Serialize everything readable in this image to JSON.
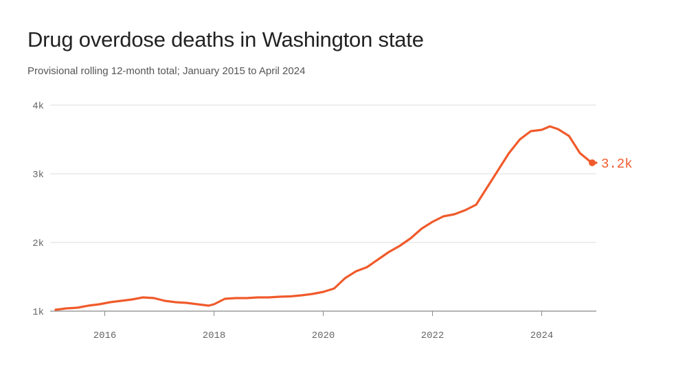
{
  "title": "Drug overdose deaths in Washington state",
  "subtitle": "Provisional rolling 12-month total; January 2015 to April 2024",
  "colors": {
    "line": "#f05a2b",
    "grid": "#dddddd",
    "axis": "#888888",
    "text": "#666666"
  },
  "chart_data": {
    "type": "line",
    "title": "Drug overdose deaths in Washington state",
    "subtitle": "Provisional rolling 12-month total; January 2015 to April 2024",
    "xlabel": "",
    "ylabel": "",
    "xlim": [
      2015.0,
      2025.0
    ],
    "ylim": [
      1000,
      4000
    ],
    "grid": true,
    "legend": "none",
    "x_ticks": [
      {
        "value": 2016,
        "label": "2016"
      },
      {
        "value": 2018,
        "label": "2018"
      },
      {
        "value": 2020,
        "label": "2020"
      },
      {
        "value": 2022,
        "label": "2022"
      },
      {
        "value": 2024,
        "label": "2024"
      }
    ],
    "y_ticks": [
      {
        "value": 1000,
        "label": "1k"
      },
      {
        "value": 2000,
        "label": "2k"
      },
      {
        "value": 3000,
        "label": "3k"
      },
      {
        "value": 4000,
        "label": "4k"
      }
    ],
    "end_label": "3.2k",
    "series": [
      {
        "values": [
          [
            2015.1,
            1020
          ],
          [
            2015.3,
            1040
          ],
          [
            2015.5,
            1050
          ],
          [
            2015.7,
            1080
          ],
          [
            2015.9,
            1100
          ],
          [
            2016.1,
            1130
          ],
          [
            2016.3,
            1150
          ],
          [
            2016.5,
            1170
          ],
          [
            2016.7,
            1200
          ],
          [
            2016.9,
            1190
          ],
          [
            2017.1,
            1150
          ],
          [
            2017.3,
            1130
          ],
          [
            2017.5,
            1120
          ],
          [
            2017.7,
            1100
          ],
          [
            2017.9,
            1080
          ],
          [
            2018.0,
            1100
          ],
          [
            2018.2,
            1180
          ],
          [
            2018.4,
            1190
          ],
          [
            2018.6,
            1190
          ],
          [
            2018.8,
            1200
          ],
          [
            2019.0,
            1200
          ],
          [
            2019.2,
            1210
          ],
          [
            2019.4,
            1215
          ],
          [
            2019.6,
            1230
          ],
          [
            2019.8,
            1250
          ],
          [
            2020.0,
            1280
          ],
          [
            2020.2,
            1330
          ],
          [
            2020.4,
            1480
          ],
          [
            2020.6,
            1580
          ],
          [
            2020.8,
            1640
          ],
          [
            2021.0,
            1750
          ],
          [
            2021.2,
            1860
          ],
          [
            2021.4,
            1950
          ],
          [
            2021.6,
            2060
          ],
          [
            2021.8,
            2200
          ],
          [
            2022.0,
            2300
          ],
          [
            2022.2,
            2380
          ],
          [
            2022.4,
            2410
          ],
          [
            2022.6,
            2470
          ],
          [
            2022.8,
            2550
          ],
          [
            2023.0,
            2800
          ],
          [
            2023.2,
            3050
          ],
          [
            2023.4,
            3300
          ],
          [
            2023.6,
            3500
          ],
          [
            2023.8,
            3620
          ],
          [
            2024.0,
            3640
          ],
          [
            2024.15,
            3690
          ],
          [
            2024.3,
            3650
          ],
          [
            2024.5,
            3550
          ],
          [
            2024.7,
            3300
          ],
          [
            2024.9,
            3170
          ],
          [
            2025.0,
            3160
          ]
        ]
      }
    ]
  }
}
